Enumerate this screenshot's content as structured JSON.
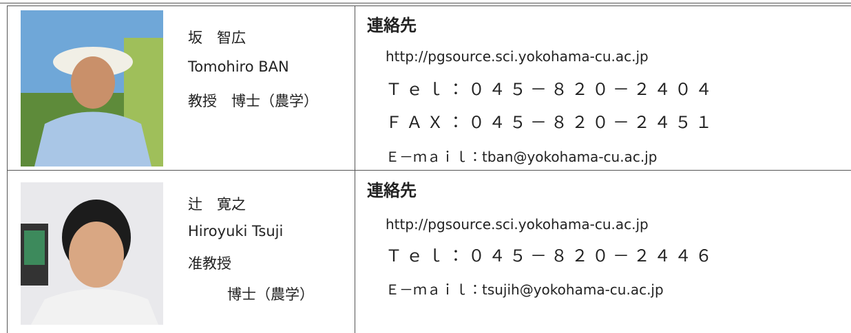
{
  "rows": [
    {
      "name_ja": "坂　智広",
      "name_en": "Tomohiro BAN",
      "title": "教授　博士（農学）",
      "contact_heading": "連絡先",
      "contact": [
        "http://pgsource.sci.yokohama-cu.ac.jp",
        "Ｔｅｌ：０４５－８２０－２４０４",
        "ＦＡＸ：０４５－８２０－２４５１",
        "Ｅ－ｍａｉｌ：tban@yokohama-cu.ac.jp"
      ]
    },
    {
      "name_ja": "辻　寛之",
      "name_en": "Hiroyuki Tsuji",
      "title": "准教授",
      "degree": "博士（農学）",
      "contact_heading": "連絡先",
      "contact": [
        "http://pgsource.sci.yokohama-cu.ac.jp",
        "Ｔｅｌ：０４５－８２０－２４４６",
        "Ｅ－ｍａｉｌ：tsujih@yokohama-cu.ac.jp"
      ]
    }
  ]
}
